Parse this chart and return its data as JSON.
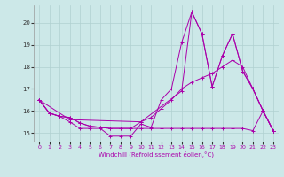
{
  "xlabel": "Windchill (Refroidissement éolien,°C)",
  "bg_color": "#cce8e8",
  "line_color": "#aa00aa",
  "xlim": [
    -0.5,
    23.5
  ],
  "ylim": [
    14.6,
    20.8
  ],
  "yticks": [
    15,
    16,
    17,
    18,
    19,
    20
  ],
  "xticks": [
    0,
    1,
    2,
    3,
    4,
    5,
    6,
    7,
    8,
    9,
    10,
    11,
    12,
    13,
    14,
    15,
    16,
    17,
    18,
    19,
    20,
    21,
    22,
    23
  ],
  "line0_x": [
    0,
    1,
    2,
    3,
    4,
    5,
    6,
    7,
    8,
    9,
    10,
    11,
    12,
    13,
    14,
    15,
    16,
    17,
    18,
    19,
    20,
    21,
    22,
    23
  ],
  "line0_y": [
    16.5,
    15.9,
    15.75,
    15.5,
    15.2,
    15.2,
    15.2,
    14.85,
    14.85,
    14.85,
    15.4,
    15.25,
    16.5,
    17.0,
    19.1,
    20.5,
    19.5,
    17.1,
    18.5,
    19.5,
    17.8,
    17.0,
    16.0,
    15.1
  ],
  "line1_x": [
    0,
    1,
    2,
    3,
    4,
    5,
    6,
    7,
    8,
    9,
    10,
    11,
    12,
    13,
    14,
    15,
    16,
    17,
    18,
    19,
    20,
    21,
    22,
    23
  ],
  "line1_y": [
    16.5,
    15.9,
    15.75,
    15.7,
    15.45,
    15.3,
    15.25,
    15.2,
    15.2,
    15.2,
    15.2,
    15.2,
    15.2,
    15.2,
    15.2,
    15.2,
    15.2,
    15.2,
    15.2,
    15.2,
    15.2,
    15.1,
    16.0,
    15.1
  ],
  "line2_x": [
    0,
    1,
    2,
    3,
    4,
    5,
    6,
    7,
    8,
    9,
    10,
    11,
    12,
    13,
    14,
    15,
    16,
    17,
    18,
    19,
    20,
    21,
    22,
    23
  ],
  "line2_y": [
    16.5,
    15.9,
    15.75,
    15.7,
    15.45,
    15.3,
    15.25,
    15.2,
    15.2,
    15.2,
    15.5,
    15.7,
    16.1,
    16.5,
    17.0,
    17.3,
    17.5,
    17.7,
    18.0,
    18.3,
    18.0,
    17.0,
    16.0,
    15.1
  ],
  "line3_x": [
    0,
    3,
    10,
    14,
    15,
    16,
    17,
    18,
    19,
    20,
    21,
    22,
    23
  ],
  "line3_y": [
    16.5,
    15.6,
    15.5,
    16.9,
    20.5,
    19.5,
    17.1,
    18.5,
    19.5,
    17.8,
    17.0,
    16.0,
    15.1
  ]
}
